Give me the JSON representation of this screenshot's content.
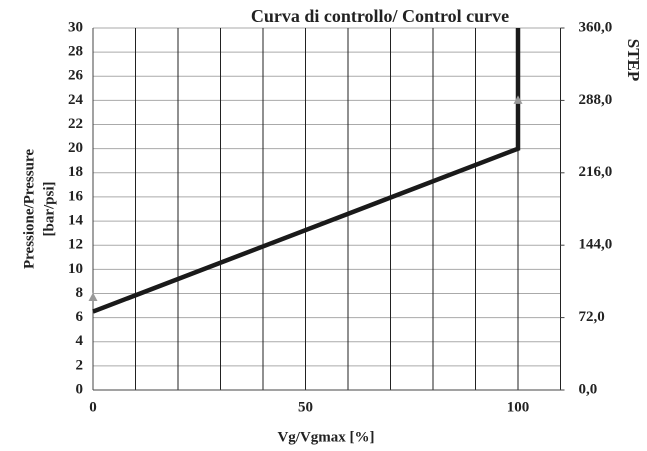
{
  "chart_data": {
    "type": "line",
    "title": "Curva di controllo/ Control curve",
    "y_label": [
      "Pressione/Pressure",
      "[bar/psi]"
    ],
    "y2_label": "STEP",
    "x_label": "Vg/Vgmax [%]",
    "xlim": [
      0,
      110
    ],
    "xticks": [
      0,
      50,
      100
    ],
    "xgrid": [
      10,
      20,
      30,
      40,
      50,
      60,
      70,
      80,
      90,
      100,
      110
    ],
    "ylim": [
      0,
      30
    ],
    "yticks": [
      0,
      2,
      4,
      6,
      8,
      10,
      12,
      14,
      16,
      18,
      20,
      22,
      24,
      26,
      28,
      30
    ],
    "y2lim": [
      0,
      360
    ],
    "y2ticks": [
      {
        "value": 0,
        "label": "0,0"
      },
      {
        "value": 72,
        "label": "72,0"
      },
      {
        "value": 144,
        "label": "144,0"
      },
      {
        "value": 216,
        "label": "216,0"
      },
      {
        "value": 288,
        "label": "288,0"
      },
      {
        "value": 360,
        "label": "360,0"
      }
    ],
    "grid": true,
    "series": [
      {
        "color": "#1a1a1a",
        "x": [
          0,
          100,
          100
        ],
        "values": [
          6.5,
          20,
          30
        ]
      },
      {
        "color": "#999999",
        "axis": "y2",
        "marker": "triangle",
        "x": [
          0,
          100
        ],
        "values": [
          92,
          288
        ]
      }
    ]
  }
}
